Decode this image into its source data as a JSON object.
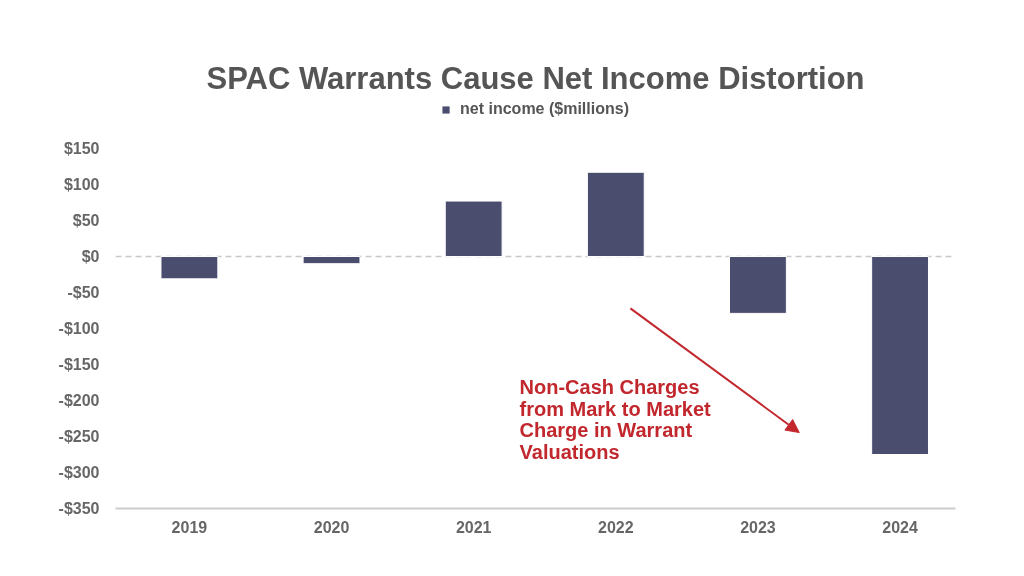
{
  "chart_data": {
    "type": "bar",
    "title": "SPAC Warrants Cause Net Income Distortion",
    "categories": [
      "2019",
      "2020",
      "2021",
      "2022",
      "2023",
      "2024"
    ],
    "series": [
      {
        "name": "net income ($millions)",
        "color": "#4a4d6d",
        "values": [
          -31,
          -10,
          77,
          117,
          -79,
          -275
        ]
      }
    ],
    "ylim": [
      -350,
      150
    ],
    "yticks": [
      {
        "value": -350,
        "label": "-$350"
      },
      {
        "value": -300,
        "label": "-$300"
      },
      {
        "value": -250,
        "label": "-$250"
      },
      {
        "value": -200,
        "label": "-$200"
      },
      {
        "value": -150,
        "label": "-$150"
      },
      {
        "value": -100,
        "label": "-$100"
      },
      {
        "value": -50,
        "label": "-$50"
      },
      {
        "value": 0,
        "label": "$0"
      },
      {
        "value": 50,
        "label": "$50"
      },
      {
        "value": 100,
        "label": "$100"
      },
      {
        "value": 150,
        "label": "$150"
      }
    ],
    "grid": false,
    "legend": "top",
    "ref_lines": [
      {
        "axis": "y",
        "value": 0,
        "color": "#c8c8c8",
        "line_style": "dashed"
      }
    ],
    "annotations": [
      "Non-Cash Charges from Mark to Market Charge in Warrant Valuations"
    ]
  }
}
